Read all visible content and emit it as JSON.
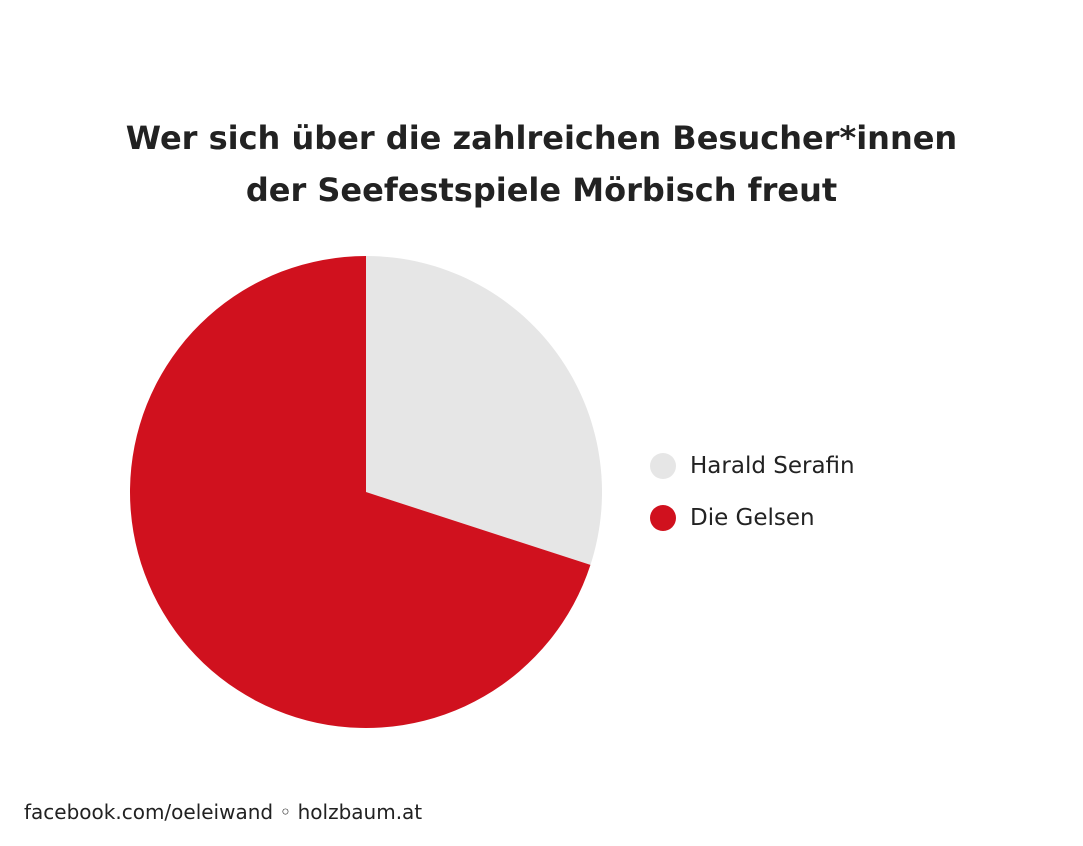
{
  "chart_data": {
    "type": "pie",
    "title": [
      "Wer sich über die zahlreichen Besucher*innen",
      "der Seefestspiele Mörbisch freut"
    ],
    "slices": [
      {
        "label": "Harald Serafin",
        "value": 30,
        "color": "#e6e6e6"
      },
      {
        "label": "Die Gelsen",
        "value": 70,
        "color": "#d0111e"
      }
    ],
    "start_angle": "12 o'clock",
    "direction": "clockwise",
    "legend_position": "right"
  },
  "footer": "facebook.com/oeleiwand ◦ holzbaum.at"
}
